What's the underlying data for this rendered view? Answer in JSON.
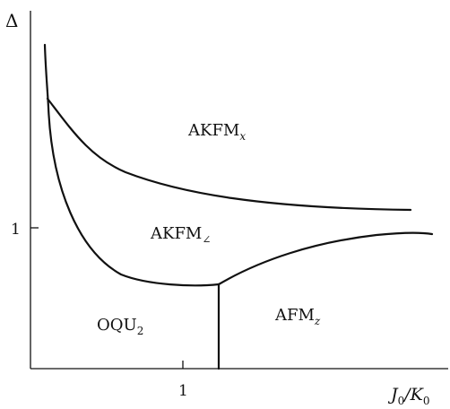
{
  "axes": {
    "y_label": "Δ",
    "x_label_main": "J",
    "x_label_sub0": "0",
    "x_label_slash": "/K",
    "x_label_sub1": "0",
    "x_tick_label": "1",
    "y_tick_label": "1"
  },
  "regions": {
    "akfm_x": {
      "main": "AKFM",
      "sub": "x"
    },
    "akfm_angle": {
      "main": "AKFM",
      "sub": "∠"
    },
    "oqu2": {
      "main": "OQU",
      "sub": "2"
    },
    "afm_z": {
      "main": "AFM",
      "sub": "z"
    }
  }
}
